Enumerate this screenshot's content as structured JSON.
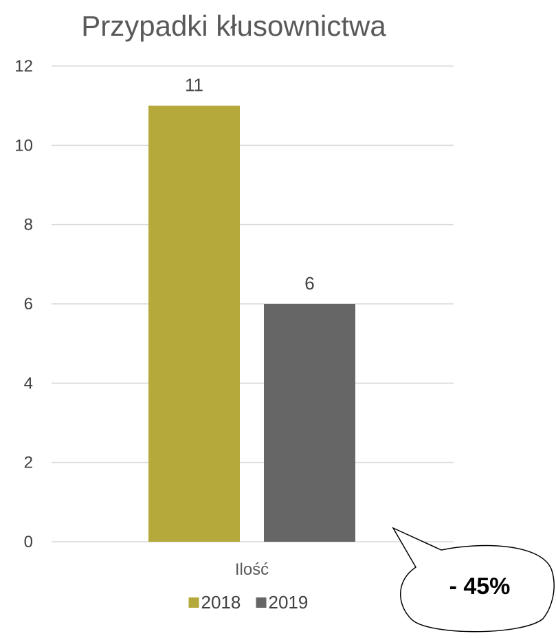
{
  "chart_data": {
    "type": "bar",
    "title": "Przypadki kłusownictwa",
    "categories": [
      "Ilość"
    ],
    "series": [
      {
        "name": "2018",
        "values": [
          11
        ],
        "color": "#b5a93b"
      },
      {
        "name": "2019",
        "values": [
          6
        ],
        "color": "#666666"
      }
    ],
    "ylim": [
      0,
      12
    ],
    "yticks": [
      0,
      2,
      4,
      6,
      8,
      10,
      12
    ],
    "grid": true,
    "legend": "bottom",
    "data_labels": [
      "11",
      "6"
    ],
    "annotation": "- 45%"
  }
}
